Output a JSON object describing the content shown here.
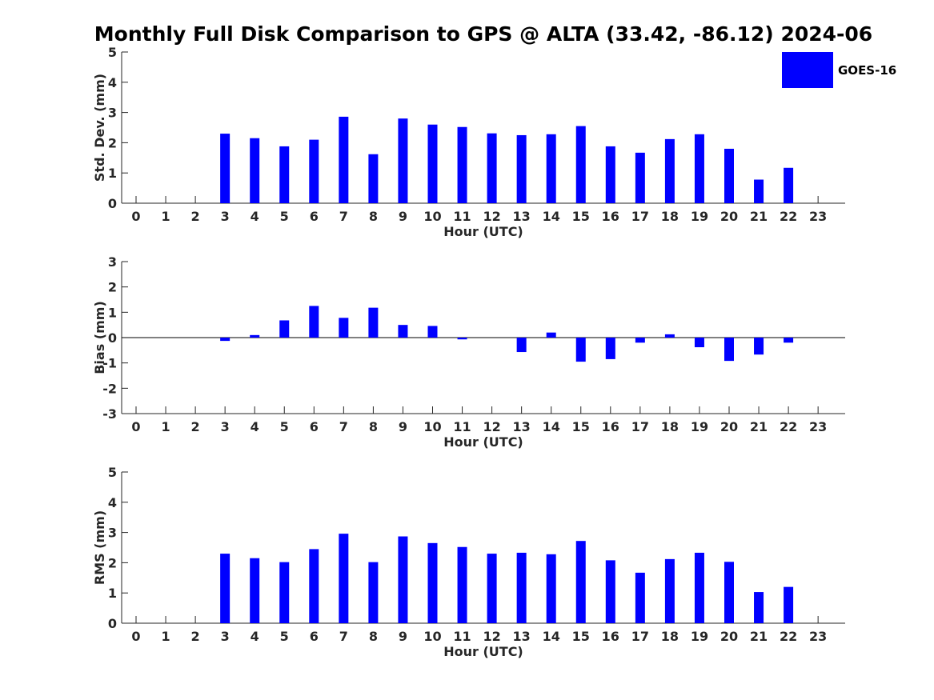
{
  "title": "Monthly Full Disk Comparison to GPS @ ALTA (33.42, -86.12) 2024-06",
  "legend": {
    "label": "GOES-16",
    "color": "#0000ff"
  },
  "chart_data": [
    {
      "type": "bar",
      "id": "stddev",
      "categories": [
        "0",
        "1",
        "2",
        "3",
        "4",
        "5",
        "6",
        "7",
        "8",
        "9",
        "10",
        "11",
        "12",
        "13",
        "14",
        "15",
        "16",
        "17",
        "18",
        "19",
        "20",
        "21",
        "22",
        "23"
      ],
      "values": [
        null,
        null,
        null,
        2.3,
        2.15,
        1.88,
        2.1,
        2.86,
        1.62,
        2.8,
        2.6,
        2.52,
        2.31,
        2.25,
        2.28,
        2.55,
        1.88,
        1.67,
        2.12,
        2.28,
        1.8,
        0.78,
        1.17,
        null
      ],
      "xlabel": "Hour (UTC)",
      "ylabel": "Std. Dev. (mm)",
      "ylim": [
        0,
        5
      ],
      "yticks": [
        "0",
        "1",
        "2",
        "3",
        "4",
        "5"
      ],
      "series_name": "GOES-16"
    },
    {
      "type": "bar",
      "id": "bias",
      "categories": [
        "0",
        "1",
        "2",
        "3",
        "4",
        "5",
        "6",
        "7",
        "8",
        "9",
        "10",
        "11",
        "12",
        "13",
        "14",
        "15",
        "16",
        "17",
        "18",
        "19",
        "20",
        "21",
        "22",
        "23"
      ],
      "values": [
        null,
        null,
        null,
        -0.13,
        0.1,
        0.68,
        1.25,
        0.78,
        1.18,
        0.5,
        0.46,
        -0.07,
        0,
        -0.57,
        0.2,
        -0.95,
        -0.85,
        -0.2,
        0.13,
        -0.38,
        -0.92,
        -0.67,
        -0.2,
        null
      ],
      "xlabel": "Hour (UTC)",
      "ylabel": "Bias (mm)",
      "ylim": [
        -3,
        3
      ],
      "yticks": [
        "-3",
        "-2",
        "-1",
        "0",
        "1",
        "2",
        "3"
      ],
      "series_name": "GOES-16"
    },
    {
      "type": "bar",
      "id": "rms",
      "categories": [
        "0",
        "1",
        "2",
        "3",
        "4",
        "5",
        "6",
        "7",
        "8",
        "9",
        "10",
        "11",
        "12",
        "13",
        "14",
        "15",
        "16",
        "17",
        "18",
        "19",
        "20",
        "21",
        "22",
        "23"
      ],
      "values": [
        null,
        null,
        null,
        2.3,
        2.15,
        2.02,
        2.45,
        2.96,
        2.02,
        2.87,
        2.65,
        2.52,
        2.3,
        2.33,
        2.28,
        2.72,
        2.08,
        1.67,
        2.12,
        2.33,
        2.03,
        1.03,
        1.2,
        null
      ],
      "xlabel": "Hour (UTC)",
      "ylabel": "RMS (mm)",
      "ylim": [
        0,
        5
      ],
      "yticks": [
        "0",
        "1",
        "2",
        "3",
        "4",
        "5"
      ],
      "series_name": "GOES-16"
    }
  ]
}
